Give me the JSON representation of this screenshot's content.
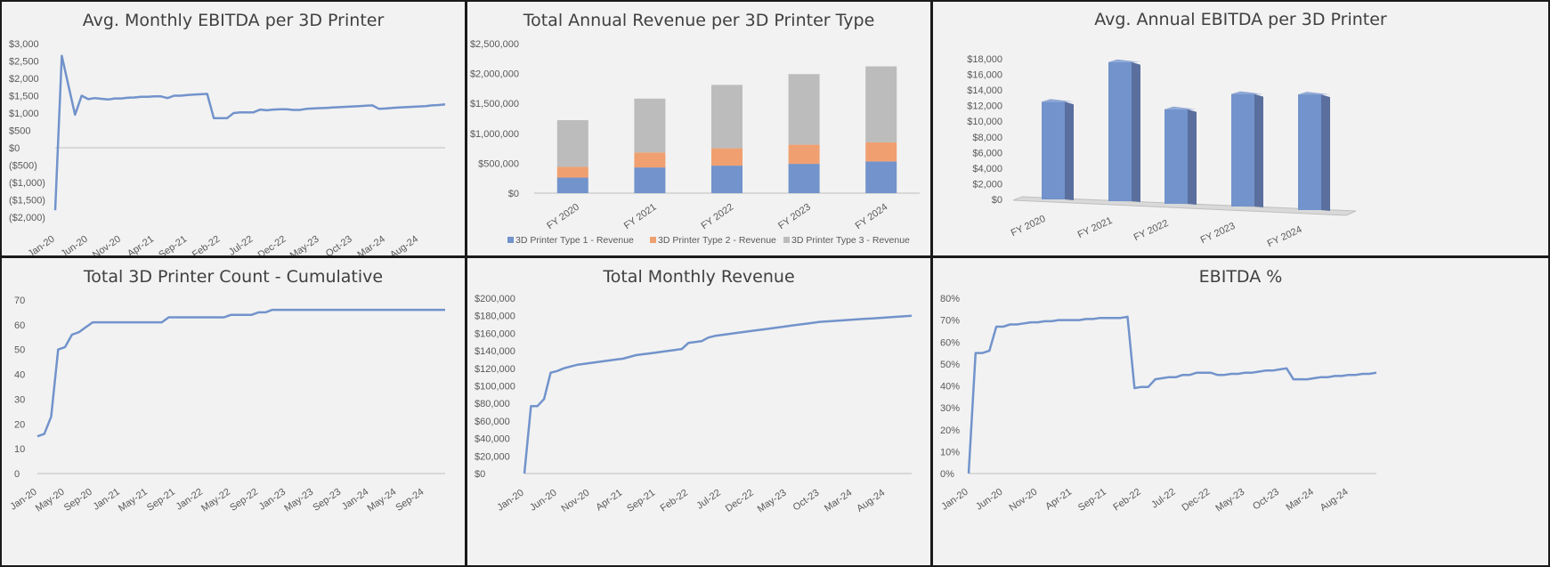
{
  "chart_data": [
    {
      "id": "c1",
      "type": "line",
      "title": "Avg. Monthly EBITDA per 3D Printer",
      "x": [
        "Jan-20",
        "Feb-20",
        "Mar-20",
        "Apr-20",
        "May-20",
        "Jun-20",
        "Jul-20",
        "Aug-20",
        "Sep-20",
        "Oct-20",
        "Nov-20",
        "Dec-20",
        "Jan-21",
        "Feb-21",
        "Mar-21",
        "Apr-21",
        "May-21",
        "Jun-21",
        "Jul-21",
        "Aug-21",
        "Sep-21",
        "Oct-21",
        "Nov-21",
        "Dec-21",
        "Jan-22",
        "Feb-22",
        "Mar-22",
        "Apr-22",
        "May-22",
        "Jun-22",
        "Jul-22",
        "Aug-22",
        "Sep-22",
        "Oct-22",
        "Nov-22",
        "Dec-22",
        "Jan-23",
        "Feb-23",
        "Mar-23",
        "Apr-23",
        "May-23",
        "Jun-23",
        "Jul-23",
        "Aug-23",
        "Sep-23",
        "Oct-23",
        "Nov-23",
        "Dec-23",
        "Jan-24",
        "Feb-24",
        "Mar-24",
        "Apr-24",
        "May-24",
        "Jun-24",
        "Jul-24",
        "Aug-24",
        "Sep-24",
        "Oct-24",
        "Nov-24",
        "Dec-24"
      ],
      "x_tick_labels": [
        "Jan-20",
        "Jun-20",
        "Nov-20",
        "Apr-21",
        "Sep-21",
        "Feb-22",
        "Jul-22",
        "Dec-22",
        "May-23",
        "Oct-23",
        "Mar-24",
        "Aug-24"
      ],
      "values": [
        -1800,
        2650,
        1800,
        950,
        1500,
        1400,
        1430,
        1410,
        1390,
        1420,
        1420,
        1440,
        1450,
        1470,
        1470,
        1480,
        1480,
        1430,
        1500,
        1500,
        1520,
        1530,
        1540,
        1550,
        850,
        850,
        850,
        1000,
        1020,
        1020,
        1020,
        1100,
        1080,
        1100,
        1110,
        1110,
        1090,
        1090,
        1120,
        1130,
        1140,
        1150,
        1160,
        1170,
        1180,
        1190,
        1200,
        1210,
        1220,
        1120,
        1130,
        1150,
        1160,
        1170,
        1180,
        1190,
        1200,
        1220,
        1230,
        1250
      ],
      "y_tick_labels": [
        "$3,000",
        "$2,500",
        "$2,000",
        "$1,500",
        "$1,000",
        "$500",
        "$0",
        "($500)",
        "($1,000)",
        "($1,500)",
        "($2,000)"
      ],
      "ylim": [
        -2000,
        3000
      ],
      "color": "#7293cb"
    },
    {
      "id": "c2",
      "type": "bar",
      "stacked": true,
      "title": "Total Annual Revenue per 3D Printer Type",
      "categories": [
        "FY 2020",
        "FY 2021",
        "FY 2022",
        "FY 2023",
        "FY 2024"
      ],
      "series": [
        {
          "name": "3D Printer Type 1 - Revenue",
          "values": [
            260000,
            430000,
            460000,
            490000,
            530000
          ],
          "color": "#7293cb"
        },
        {
          "name": "3D Printer Type 2 - Revenue",
          "values": [
            180000,
            250000,
            290000,
            320000,
            320000
          ],
          "color": "#f0a070"
        },
        {
          "name": "3D Printer Type 3 - Revenue",
          "values": [
            780000,
            900000,
            1060000,
            1180000,
            1270000
          ],
          "color": "#bcbcbc"
        }
      ],
      "y_tick_labels": [
        "$2,500,000",
        "$2,000,000",
        "$1,500,000",
        "$1,000,000",
        "$500,000",
        "$0"
      ],
      "ylim": [
        0,
        2500000
      ],
      "legend": "bottom"
    },
    {
      "id": "c3",
      "type": "bar",
      "style": "3d-column",
      "title": "Avg. Annual EBITDA per 3D Printer",
      "categories": [
        "FY 2020",
        "FY 2021",
        "FY 2022",
        "FY 2023",
        "FY 2024"
      ],
      "values": [
        12500,
        17800,
        12100,
        14400,
        14800
      ],
      "y_tick_labels": [
        "$18,000",
        "$16,000",
        "$14,000",
        "$12,000",
        "$10,000",
        "$8,000",
        "$6,000",
        "$4,000",
        "$2,000",
        "$0"
      ],
      "ylim": [
        0,
        18000
      ],
      "color": "#7293cb"
    },
    {
      "id": "c4",
      "type": "line",
      "title": "Total 3D Printer Count - Cumulative",
      "x_tick_labels": [
        "Jan-20",
        "May-20",
        "Sep-20",
        "Jan-21",
        "May-21",
        "Sep-21",
        "Jan-22",
        "May-22",
        "Sep-22",
        "Jan-23",
        "May-23",
        "Sep-23",
        "Jan-24",
        "May-24",
        "Sep-24"
      ],
      "values": [
        15,
        16,
        23,
        50,
        51,
        56,
        57,
        59,
        61,
        61,
        61,
        61,
        61,
        61,
        61,
        61,
        61,
        61,
        61,
        63,
        63,
        63,
        63,
        63,
        63,
        63,
        63,
        63,
        64,
        64,
        64,
        64,
        65,
        65,
        66,
        66,
        66,
        66,
        66,
        66,
        66,
        66,
        66,
        66,
        66,
        66,
        66,
        66,
        66,
        66,
        66,
        66,
        66,
        66,
        66,
        66,
        66,
        66,
        66,
        66
      ],
      "y_tick_labels": [
        "70",
        "60",
        "50",
        "40",
        "30",
        "20",
        "10",
        "0"
      ],
      "ylim": [
        0,
        70
      ],
      "color": "#7293cb"
    },
    {
      "id": "c5",
      "type": "line",
      "title": "Total Monthly Revenue",
      "x_tick_labels": [
        "Jan-20",
        "Jun-20",
        "Nov-20",
        "Apr-21",
        "Sep-21",
        "Feb-22",
        "Jul-22",
        "Dec-22",
        "May-23",
        "Oct-23",
        "Mar-24",
        "Aug-24"
      ],
      "values": [
        0,
        77000,
        77000,
        85000,
        115000,
        117000,
        120000,
        122000,
        124000,
        125000,
        126000,
        127000,
        128000,
        129000,
        130000,
        131000,
        133000,
        135000,
        136000,
        137000,
        138000,
        139000,
        140000,
        141000,
        142000,
        149000,
        150000,
        151000,
        155000,
        157000,
        158000,
        159000,
        160000,
        161000,
        162000,
        163000,
        164000,
        165000,
        166000,
        167000,
        168000,
        169000,
        170000,
        171000,
        172000,
        173000,
        173500,
        174000,
        174500,
        175000,
        175500,
        176000,
        176500,
        177000,
        177500,
        178000,
        178500,
        179000,
        179500,
        180000
      ],
      "y_tick_labels": [
        "$200,000",
        "$180,000",
        "$160,000",
        "$140,000",
        "$120,000",
        "$100,000",
        "$80,000",
        "$60,000",
        "$40,000",
        "$20,000",
        "$0"
      ],
      "ylim": [
        0,
        200000
      ],
      "color": "#7293cb"
    },
    {
      "id": "c6",
      "type": "line",
      "title": "EBITDA %",
      "x_tick_labels": [
        "Jan-20",
        "Jun-20",
        "Nov-20",
        "Apr-21",
        "Sep-21",
        "Feb-22",
        "Jul-22",
        "Dec-22",
        "May-23",
        "Oct-23",
        "Mar-24",
        "Aug-24"
      ],
      "values": [
        0,
        55,
        55,
        56,
        67,
        67,
        68,
        68,
        68.5,
        69,
        69,
        69.5,
        69.5,
        70,
        70,
        70,
        70,
        70.5,
        70.5,
        71,
        71,
        71,
        71,
        71.5,
        39,
        39.5,
        39.5,
        43,
        43.5,
        44,
        44,
        45,
        45,
        46,
        46,
        46,
        45,
        45,
        45.5,
        45.5,
        46,
        46,
        46.5,
        47,
        47,
        47.5,
        48,
        43,
        43,
        43,
        43.5,
        44,
        44,
        44.5,
        44.5,
        45,
        45,
        45.5,
        45.5,
        46
      ],
      "y_tick_labels": [
        "80%",
        "70%",
        "60%",
        "50%",
        "40%",
        "30%",
        "20%",
        "10%",
        "0%"
      ],
      "ylim": [
        0,
        80
      ],
      "color": "#7293cb"
    }
  ]
}
